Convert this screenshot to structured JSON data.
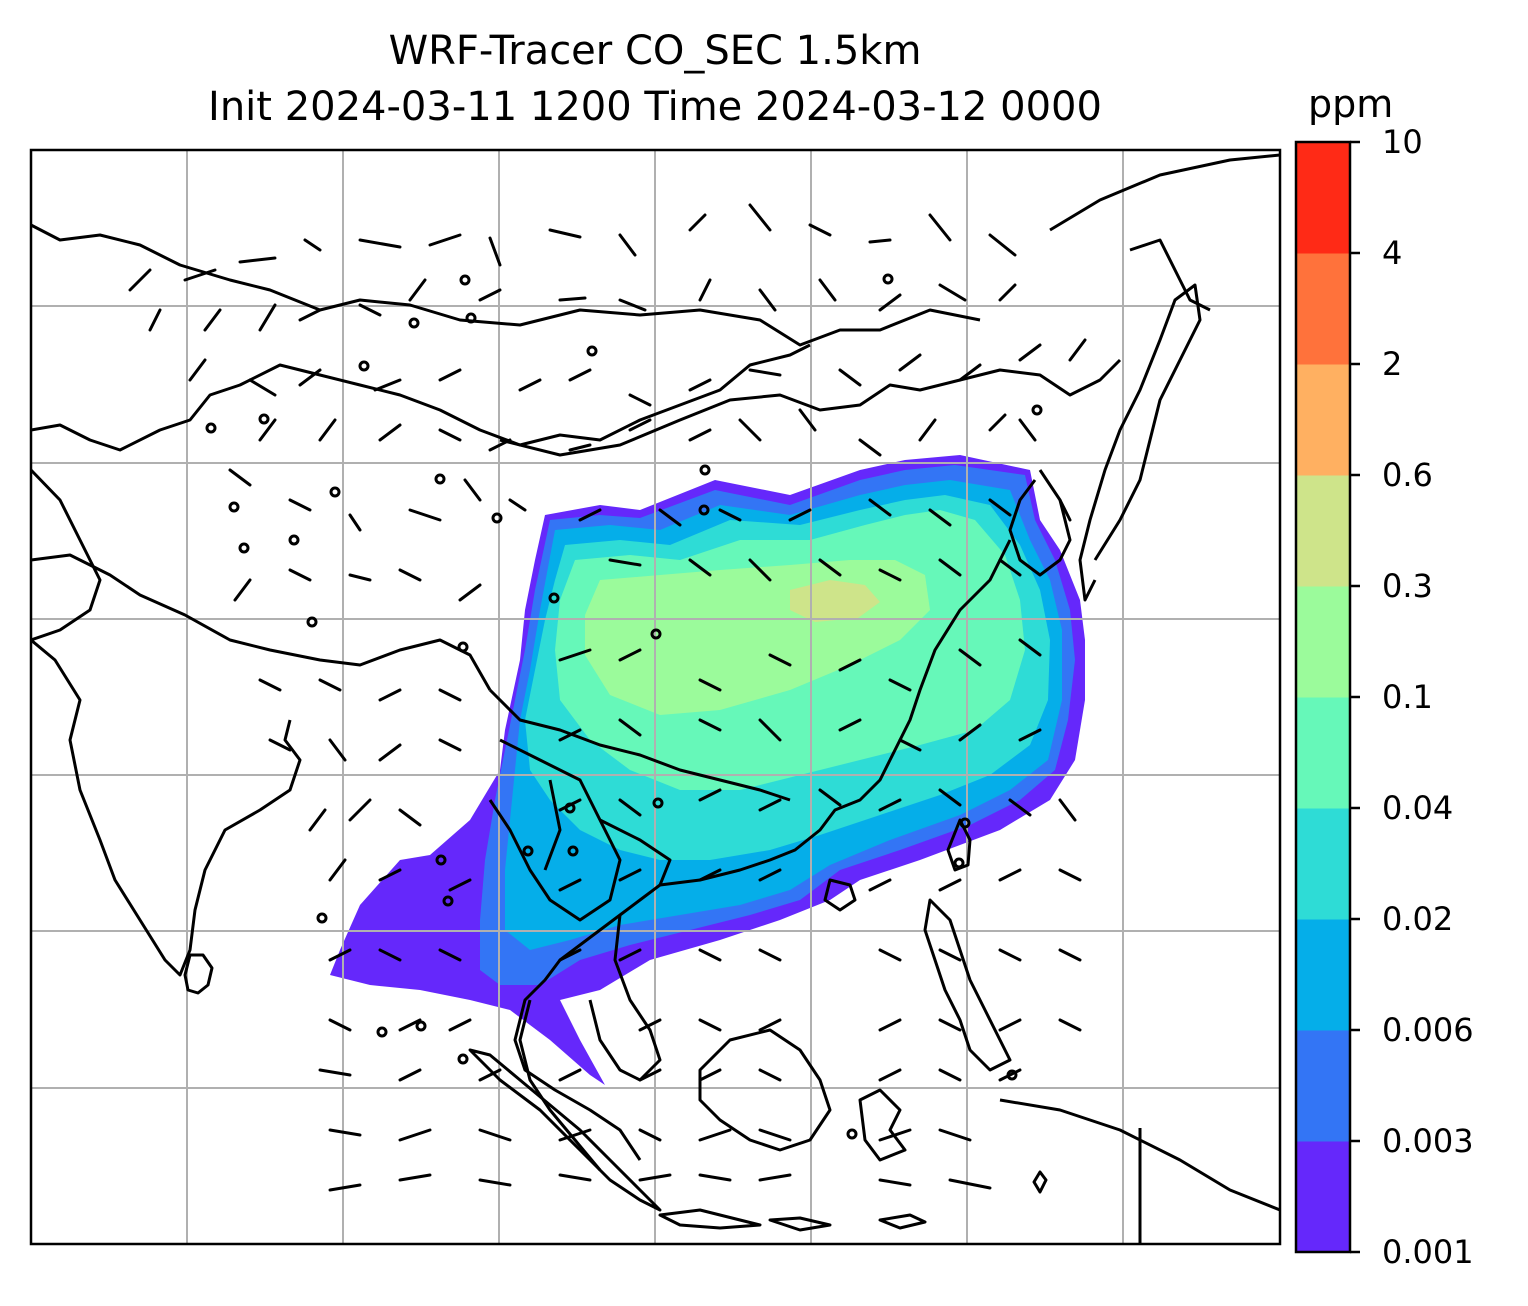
{
  "title_line1": "WRF-Tracer CO_SEC 1.5km",
  "title_line2": "Init 2024-03-11 1200 Time 2024-03-12 0000",
  "colorbar": {
    "unit": "ppm",
    "levels": [
      "0.001",
      "0.003",
      "0.006",
      "0.02",
      "0.04",
      "0.1",
      "0.3",
      "0.6",
      "2",
      "4",
      "10"
    ],
    "colors": [
      "#6528fb",
      "#3375f5",
      "#05aee9",
      "#2edcd6",
      "#66f8b9",
      "#9bfb9b",
      "#cee48a",
      "#ffb061",
      "#ff723b",
      "#ff2a16"
    ]
  },
  "map": {
    "grid": "on",
    "grid_color": "#b0b0b0",
    "coastline_color": "#000000",
    "wind_barbs": "on",
    "tracer_field": "CO_SEC"
  }
}
